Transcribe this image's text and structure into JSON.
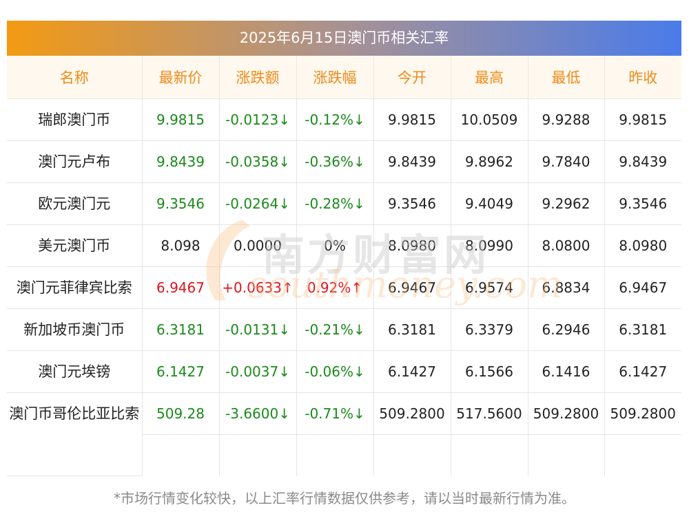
{
  "title": "2025年6月15日澳门币相关汇率",
  "columns": [
    "名称",
    "最新价",
    "涨跌额",
    "涨跌幅",
    "今开",
    "最高",
    "最低",
    "昨收"
  ],
  "rows": [
    {
      "name": "瑞郎澳门币",
      "latest": "9.9815",
      "change": "-0.0123↓",
      "pct": "-0.12%↓",
      "open": "9.9815",
      "high": "10.0509",
      "low": "9.9288",
      "prev": "9.9815",
      "trend": "down"
    },
    {
      "name": "澳门元卢布",
      "latest": "9.8439",
      "change": "-0.0358↓",
      "pct": "-0.36%↓",
      "open": "9.8439",
      "high": "9.8962",
      "low": "9.7840",
      "prev": "9.8439",
      "trend": "down"
    },
    {
      "name": "欧元澳门元",
      "latest": "9.3546",
      "change": "-0.0264↓",
      "pct": "-0.28%↓",
      "open": "9.3546",
      "high": "9.4049",
      "low": "9.2962",
      "prev": "9.3546",
      "trend": "down"
    },
    {
      "name": "美元澳门币",
      "latest": "8.098",
      "change": "0.0000",
      "pct": "0%",
      "open": "8.0980",
      "high": "8.0990",
      "low": "8.0800",
      "prev": "8.0980",
      "trend": "flat"
    },
    {
      "name": "澳门元菲律宾比索",
      "latest": "6.9467",
      "change": "+0.0633↑",
      "pct": "0.92%↑",
      "open": "6.9467",
      "high": "6.9574",
      "low": "6.8834",
      "prev": "6.9467",
      "trend": "up"
    },
    {
      "name": "新加坡币澳门币",
      "latest": "6.3181",
      "change": "-0.0131↓",
      "pct": "-0.21%↓",
      "open": "6.3181",
      "high": "6.3379",
      "low": "6.2946",
      "prev": "6.3181",
      "trend": "down"
    },
    {
      "name": "澳门元埃镑",
      "latest": "6.1427",
      "change": "-0.0037↓",
      "pct": "-0.06%↓",
      "open": "6.1427",
      "high": "6.1566",
      "low": "6.1416",
      "prev": "6.1427",
      "trend": "down"
    },
    {
      "name": "澳门币哥伦比亚比索",
      "latest": "509.28",
      "change": "-3.6600↓",
      "pct": "-0.71%↓",
      "open": "509.2800",
      "high": "517.5600",
      "low": "509.2800",
      "prev": "509.2800",
      "trend": "down"
    }
  ],
  "watermark": {
    "cn": "南方财富网",
    "en": "southmoney.com"
  },
  "footnote": "*市场行情变化较快，以上汇率行情数据仅供参考，请以当时最新行情为准。",
  "colors": {
    "up": "#e0141e",
    "down": "#1a8a1a",
    "header_text": "#f08a18",
    "header_bg": "#fff8ee"
  }
}
